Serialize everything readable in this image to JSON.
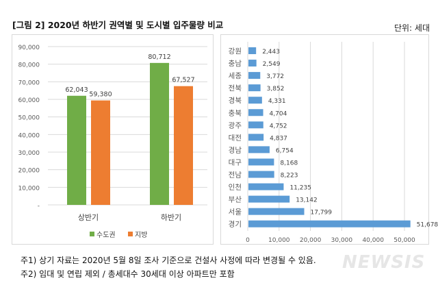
{
  "header": {
    "title": "[그림 2] 2020년 하반기 권역별 및 도시별 입주물량 비교",
    "unit": "단위: 세대"
  },
  "notes": [
    "주1) 상기 자료는 2020년 5월 8일 조사 기준으로 건설사 사정에 따라 변경될 수 있음.",
    "주2) 임대 및 연립 제외 / 총세대수 30세대 이상 아파트만 포함"
  ],
  "watermark": "NEWSIS",
  "colors": {
    "green": "#70ad47",
    "orange": "#ed7d31",
    "blue": "#5b9bd5"
  },
  "chart_data": [
    {
      "type": "bar",
      "categories": [
        "상반기",
        "하반기"
      ],
      "series": [
        {
          "name": "수도권",
          "values": [
            62043,
            80712
          ]
        },
        {
          "name": "지방",
          "values": [
            59380,
            67527
          ]
        }
      ],
      "value_labels": [
        [
          "62,043",
          "80,712"
        ],
        [
          "59,380",
          "67,527"
        ]
      ],
      "ylim": [
        0,
        90000
      ],
      "yticks": [
        "-",
        "10,000",
        "20,000",
        "30,000",
        "40,000",
        "50,000",
        "60,000",
        "70,000",
        "80,000",
        "90,000"
      ],
      "grid": true,
      "legend": "bottom"
    },
    {
      "type": "bar",
      "orientation": "horizontal",
      "categories": [
        "강원",
        "충남",
        "세종",
        "전북",
        "경북",
        "충북",
        "광주",
        "대전",
        "경남",
        "대구",
        "전남",
        "인천",
        "부산",
        "서울",
        "경기"
      ],
      "values": [
        2443,
        2549,
        3772,
        3852,
        4331,
        4704,
        4752,
        4837,
        6754,
        8168,
        8223,
        11235,
        13142,
        17799,
        51678
      ],
      "value_labels": [
        "2,443",
        "2,549",
        "3,772",
        "3,852",
        "4,331",
        "4,704",
        "4,752",
        "4,837",
        "6,754",
        "8,168",
        "8,223",
        "11,235",
        "13,142",
        "17,799",
        "51,678"
      ],
      "xlim": [
        0,
        55000
      ],
      "xticks": [
        "0",
        "10,000",
        "20,000",
        "30,000",
        "40,000",
        "50,000"
      ],
      "grid": true
    }
  ]
}
